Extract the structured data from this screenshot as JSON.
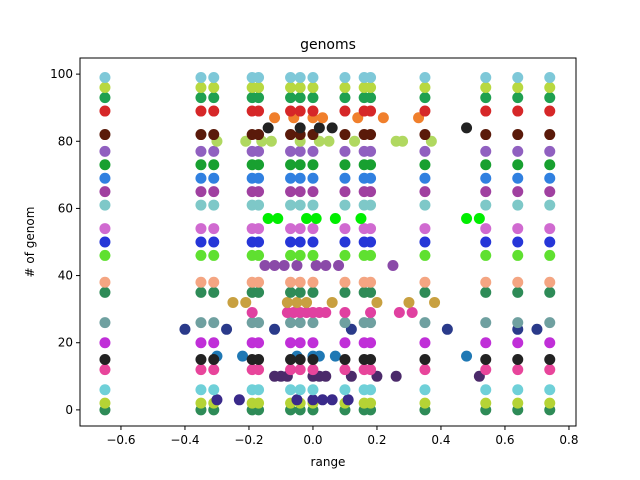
{
  "chart_data": {
    "type": "scatter",
    "title": "genoms",
    "xlabel": "range",
    "ylabel": "# of genom",
    "xlim": [
      -0.728,
      0.822
    ],
    "ylim": [
      -4.8,
      104.8
    ],
    "xticks": [
      {
        "value": -0.6,
        "label": "−0.6"
      },
      {
        "value": -0.4,
        "label": "−0.4"
      },
      {
        "value": -0.2,
        "label": "−0.2"
      },
      {
        "value": 0,
        "label": "0.0"
      },
      0.2,
      0.4,
      0.6,
      0.8
    ],
    "yticks": [
      0,
      20,
      40,
      60,
      80,
      100
    ],
    "series": [
      {
        "color": "#2e8b57",
        "y": 0,
        "x": [
          -0.65,
          -0.35,
          -0.31,
          -0.19,
          -0.17,
          -0.07,
          -0.04,
          0.0,
          0.1,
          0.16,
          0.18,
          0.35,
          0.54,
          0.64,
          0.74
        ]
      },
      {
        "color": "#b5d335",
        "y": 2,
        "x": [
          -0.65,
          -0.35,
          -0.31,
          -0.19,
          -0.17,
          -0.07,
          -0.04,
          0.0,
          0.1,
          0.16,
          0.18,
          0.35,
          0.54,
          0.64,
          0.74
        ]
      },
      {
        "color": "#3a2a8a",
        "y": 3,
        "x": [
          -0.3,
          -0.23,
          -0.05,
          0.0,
          0.03,
          0.06,
          0.11
        ]
      },
      {
        "color": "#6fd0d8",
        "y": 6,
        "x": [
          -0.65,
          -0.35,
          -0.31,
          -0.19,
          -0.17,
          -0.07,
          -0.04,
          0.0,
          0.1,
          0.16,
          0.18,
          0.35,
          0.54,
          0.64,
          0.74
        ]
      },
      {
        "color": "#4b2a6a",
        "y": 10,
        "x": [
          -0.1,
          -0.12,
          -0.08,
          0.0,
          0.02,
          0.04,
          0.12,
          0.2,
          0.26,
          0.52
        ]
      },
      {
        "color": "#e8459b",
        "y": 12,
        "x": [
          -0.65,
          -0.35,
          -0.31,
          -0.19,
          -0.17,
          -0.07,
          -0.04,
          0.0,
          0.1,
          0.16,
          0.18,
          0.35,
          0.54,
          0.64,
          0.74
        ]
      },
      {
        "color": "#1f78b4",
        "y": 16,
        "x": [
          -0.3,
          -0.22,
          -0.05,
          0.0,
          0.02,
          0.07,
          0.48
        ]
      },
      {
        "color": "#222222",
        "y": 15,
        "x": [
          -0.65,
          -0.35,
          -0.31,
          -0.19,
          -0.17,
          -0.07,
          -0.04,
          0.0,
          0.1,
          0.16,
          0.18,
          0.35,
          0.54,
          0.64,
          0.74
        ]
      },
      {
        "color": "#c02fd8",
        "y": 20,
        "x": [
          -0.65,
          -0.35,
          -0.31,
          -0.19,
          -0.17,
          -0.07,
          -0.04,
          0.0,
          0.1,
          0.16,
          0.18,
          0.35,
          0.54,
          0.64,
          0.74
        ]
      },
      {
        "color": "#2a3a8a",
        "y": 24,
        "x": [
          -0.4,
          -0.27,
          -0.12,
          0.12,
          0.42,
          0.64,
          0.7
        ]
      },
      {
        "color": "#6fa0a0",
        "y": 26,
        "x": [
          -0.65,
          -0.35,
          -0.31,
          -0.19,
          -0.17,
          -0.07,
          -0.04,
          0.0,
          0.1,
          0.16,
          0.18,
          0.35,
          0.54,
          0.64,
          0.74
        ]
      },
      {
        "color": "#e040a0",
        "y": 29,
        "x": [
          -0.08,
          -0.06,
          -0.04,
          -0.02,
          0.0,
          0.02,
          0.04,
          -0.19,
          0.1,
          0.18,
          0.27,
          0.31
        ]
      },
      {
        "color": "#c8a040",
        "y": 32,
        "x": [
          -0.25,
          -0.21,
          -0.08,
          -0.05,
          -0.02,
          0.06,
          0.3,
          0.38,
          0.2
        ]
      },
      {
        "color": "#2e8b57",
        "y": 35,
        "x": [
          -0.65,
          -0.35,
          -0.31,
          -0.19,
          -0.17,
          -0.07,
          -0.04,
          0.0,
          0.1,
          0.16,
          0.18,
          0.35,
          0.54,
          0.64,
          0.74
        ]
      },
      {
        "color": "#f4a582",
        "y": 38,
        "x": [
          -0.65,
          -0.35,
          -0.31,
          -0.19,
          -0.17,
          -0.07,
          -0.04,
          0.0,
          0.1,
          0.16,
          0.18,
          0.35,
          0.54,
          0.64,
          0.74
        ]
      },
      {
        "color": "#8a4aa8",
        "y": 43,
        "x": [
          -0.15,
          -0.12,
          -0.09,
          -0.05,
          0.01,
          0.04,
          0.08,
          0.25
        ]
      },
      {
        "color": "#5fe030",
        "y": 46,
        "x": [
          -0.65,
          -0.35,
          -0.31,
          -0.19,
          -0.17,
          -0.07,
          -0.04,
          0.0,
          0.1,
          0.16,
          0.18,
          0.35,
          0.54,
          0.64,
          0.74
        ]
      },
      {
        "color": "#2636d8",
        "y": 50,
        "x": [
          -0.65,
          -0.35,
          -0.31,
          -0.19,
          -0.17,
          -0.07,
          -0.04,
          0.0,
          0.1,
          0.16,
          0.18,
          0.35,
          0.54,
          0.64,
          0.74
        ]
      },
      {
        "color": "#d06ad0",
        "y": 54,
        "x": [
          -0.65,
          -0.35,
          -0.31,
          -0.19,
          -0.17,
          -0.07,
          -0.04,
          0.0,
          0.1,
          0.16,
          0.18,
          0.35,
          0.54,
          0.64,
          0.74
        ]
      },
      {
        "color": "#00ee00",
        "y": 57,
        "x": [
          -0.14,
          -0.11,
          -0.02,
          0.01,
          0.07,
          0.15,
          0.48,
          0.52
        ]
      },
      {
        "color": "#7ec8c8",
        "y": 61,
        "x": [
          -0.65,
          -0.35,
          -0.31,
          -0.19,
          -0.17,
          -0.07,
          -0.04,
          0.0,
          0.1,
          0.16,
          0.18,
          0.35,
          0.54,
          0.64,
          0.74
        ]
      },
      {
        "color": "#a040a0",
        "y": 65,
        "x": [
          -0.65,
          -0.35,
          -0.31,
          -0.19,
          -0.17,
          -0.07,
          -0.04,
          0.0,
          0.1,
          0.16,
          0.18,
          0.35,
          0.54,
          0.64,
          0.74
        ]
      },
      {
        "color": "#3080e0",
        "y": 69,
        "x": [
          -0.65,
          -0.35,
          -0.31,
          -0.19,
          -0.17,
          -0.07,
          -0.04,
          0.0,
          0.1,
          0.16,
          0.18,
          0.35,
          0.54,
          0.64,
          0.74
        ]
      },
      {
        "color": "#18a030",
        "y": 73,
        "x": [
          -0.65,
          -0.35,
          -0.31,
          -0.19,
          -0.17,
          -0.07,
          -0.04,
          0.0,
          0.1,
          0.16,
          0.18,
          0.35,
          0.54,
          0.64,
          0.74
        ]
      },
      {
        "color": "#9060c0",
        "y": 77,
        "x": [
          -0.65,
          -0.35,
          -0.31,
          -0.19,
          -0.17,
          -0.07,
          -0.04,
          0.0,
          0.1,
          0.16,
          0.18,
          0.35,
          0.54,
          0.64,
          0.74
        ]
      },
      {
        "color": "#b0d860",
        "y": 80,
        "x": [
          -0.3,
          -0.21,
          -0.16,
          -0.13,
          -0.04,
          0.02,
          0.05,
          0.13,
          0.26,
          0.28,
          0.37
        ]
      },
      {
        "color": "#5a1a0a",
        "y": 82,
        "x": [
          -0.65,
          -0.35,
          -0.31,
          -0.19,
          -0.17,
          -0.07,
          -0.04,
          0.0,
          0.1,
          0.16,
          0.18,
          0.35,
          0.54,
          0.64,
          0.74
        ]
      },
      {
        "color": "#222222",
        "y": 84,
        "x": [
          -0.14,
          -0.04,
          0.02,
          0.06,
          0.48
        ]
      },
      {
        "color": "#f07f2c",
        "y": 87,
        "x": [
          -0.12,
          -0.06,
          0.0,
          0.03,
          0.14,
          0.22,
          0.33
        ]
      },
      {
        "color": "#d62728",
        "y": 89,
        "x": [
          -0.65,
          -0.35,
          -0.31,
          -0.19,
          -0.17,
          -0.07,
          -0.04,
          0.0,
          0.1,
          0.16,
          0.18,
          0.35,
          0.54,
          0.64,
          0.74
        ]
      },
      {
        "color": "#1fa050",
        "y": 93,
        "x": [
          -0.65,
          -0.35,
          -0.31,
          -0.19,
          -0.17,
          -0.07,
          -0.04,
          0.0,
          0.1,
          0.16,
          0.18,
          0.35,
          0.54,
          0.64,
          0.74
        ]
      },
      {
        "color": "#b8d840",
        "y": 96,
        "x": [
          -0.65,
          -0.35,
          -0.31,
          -0.19,
          -0.17,
          -0.07,
          -0.04,
          0.0,
          0.1,
          0.16,
          0.18,
          0.35,
          0.54,
          0.64,
          0.74
        ]
      },
      {
        "color": "#7ec8d8",
        "y": 99,
        "x": [
          -0.65,
          -0.35,
          -0.31,
          -0.19,
          -0.17,
          -0.07,
          -0.04,
          0.0,
          0.1,
          0.16,
          0.18,
          0.35,
          0.54,
          0.64,
          0.74
        ]
      }
    ]
  }
}
